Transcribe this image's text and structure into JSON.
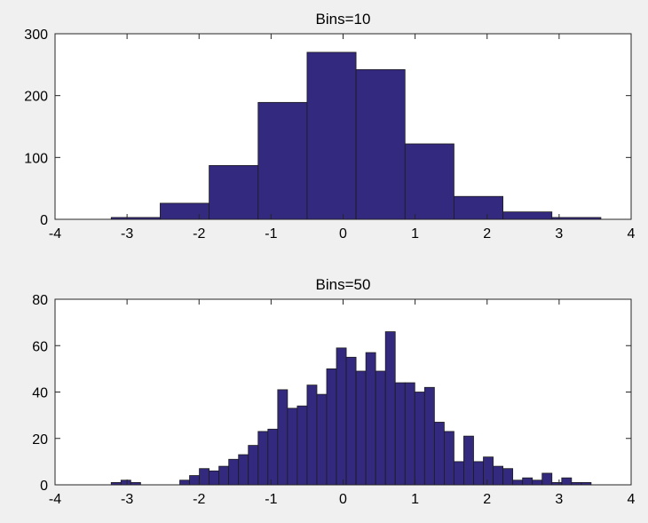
{
  "chart_data": [
    {
      "type": "bar",
      "title": "Bins=10",
      "xlim": [
        -4,
        4
      ],
      "ylim": [
        0,
        300
      ],
      "xticks": [
        -4,
        -3,
        -2,
        -1,
        0,
        1,
        2,
        3,
        4
      ],
      "yticks": [
        0,
        100,
        200,
        300
      ],
      "bin_edges": [
        -3.22,
        -2.54,
        -1.86,
        -1.18,
        -0.5,
        0.18,
        0.86,
        1.54,
        2.22,
        2.9,
        3.58
      ],
      "values": [
        3,
        26,
        87,
        189,
        270,
        242,
        122,
        37,
        12,
        3
      ],
      "bar_color": "#33297f",
      "grid": false
    },
    {
      "type": "bar",
      "title": "Bins=50",
      "xlim": [
        -4,
        4
      ],
      "ylim": [
        0,
        80
      ],
      "xticks": [
        -4,
        -3,
        -2,
        -1,
        0,
        1,
        2,
        3,
        4
      ],
      "yticks": [
        0,
        20,
        40,
        60,
        80
      ],
      "bin_edges_range": [
        -3.22,
        3.58
      ],
      "values": [
        1,
        2,
        1,
        0,
        0,
        0,
        0,
        2,
        4,
        7,
        6,
        8,
        11,
        13,
        17,
        23,
        24,
        41,
        33,
        34,
        43,
        39,
        50,
        59,
        55,
        49,
        57,
        49,
        66,
        44,
        44,
        40,
        42,
        27,
        23,
        10,
        21,
        10,
        12,
        8,
        7,
        2,
        3,
        2,
        5,
        1,
        3,
        1,
        1,
        0
      ],
      "bar_color": "#33297f",
      "grid": false
    }
  ]
}
